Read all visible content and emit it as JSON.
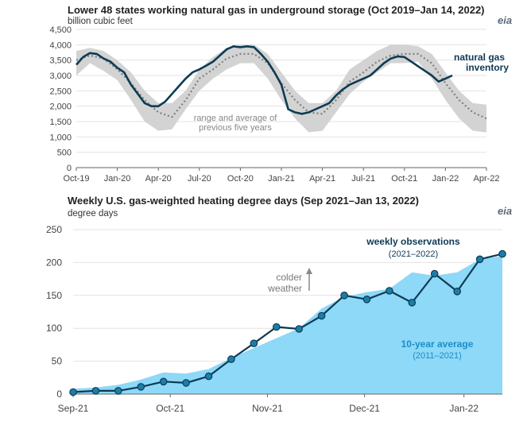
{
  "logo": {
    "text": "eia"
  },
  "chart_data": [
    {
      "type": "line",
      "title": "Lower 48 states working natural gas in underground storage (Oct 2019–Jan 14, 2022)",
      "unit_label": "billion cubic feet",
      "xlabel": "",
      "ylabel": "",
      "ylim": [
        0,
        4500
      ],
      "xlim_months": [
        0,
        30
      ],
      "grid": "horizontal",
      "y_ticks": [
        "0",
        "500",
        "1,000",
        "1,500",
        "2,000",
        "2,500",
        "3,000",
        "3,500",
        "4,000",
        "4,500"
      ],
      "x_ticks": [
        {
          "label": "Oct-19",
          "m": 0
        },
        {
          "label": "Jan-20",
          "m": 3
        },
        {
          "label": "Apr-20",
          "m": 6
        },
        {
          "label": "Jul-20",
          "m": 9
        },
        {
          "label": "Oct-20",
          "m": 12
        },
        {
          "label": "Jan-21",
          "m": 15
        },
        {
          "label": "Apr-21",
          "m": 18
        },
        {
          "label": "Jul-21",
          "m": 21
        },
        {
          "label": "Oct-21",
          "m": 24
        },
        {
          "label": "Jan-22",
          "m": 27
        },
        {
          "label": "Apr-22",
          "m": 30
        }
      ],
      "annotations": {
        "series_label": [
          "natural gas",
          "inventory"
        ],
        "band_label": [
          "range and average of",
          "previous five years"
        ]
      },
      "colors": {
        "inventory": "#0d3b55",
        "band": "#d3d3d3",
        "average": "#808080"
      },
      "series": [
        {
          "name": "natural gas inventory",
          "x_month": [
            0,
            0.5,
            1,
            1.5,
            2,
            2.5,
            3,
            3.5,
            4,
            4.5,
            5,
            5.5,
            6,
            6.5,
            7,
            7.5,
            8,
            8.5,
            9,
            9.5,
            10,
            10.5,
            11,
            11.5,
            12,
            12.5,
            13,
            13.5,
            14,
            14.5,
            15,
            15.5,
            16,
            16.5,
            17,
            17.5,
            18,
            18.5,
            19,
            19.5,
            20,
            20.5,
            21,
            21.5,
            22,
            22.5,
            23,
            23.5,
            24,
            24.5,
            25,
            25.5,
            26,
            26.5,
            27,
            27.5
          ],
          "y": [
            3350,
            3600,
            3730,
            3700,
            3550,
            3450,
            3250,
            3100,
            2700,
            2400,
            2100,
            2000,
            2000,
            2150,
            2400,
            2650,
            2900,
            3100,
            3200,
            3320,
            3450,
            3650,
            3850,
            3950,
            3920,
            3950,
            3920,
            3700,
            3450,
            3100,
            2700,
            1900,
            1800,
            1750,
            1800,
            1900,
            2000,
            2100,
            2350,
            2550,
            2700,
            2800,
            2900,
            3000,
            3200,
            3400,
            3550,
            3620,
            3600,
            3450,
            3300,
            3150,
            3000,
            2800,
            2900,
            3000
          ]
        },
        {
          "name": "five-year average",
          "x_month": [
            0,
            1,
            2,
            3,
            4,
            5,
            6,
            7,
            8,
            9,
            10,
            11,
            12,
            13,
            14,
            15,
            16,
            17,
            18,
            19,
            20,
            21,
            22,
            23,
            24,
            25,
            26,
            27,
            28,
            29,
            30
          ],
          "y": [
            3500,
            3650,
            3550,
            3200,
            2750,
            2200,
            1800,
            1650,
            2200,
            2900,
            3200,
            3550,
            3700,
            3700,
            3400,
            2750,
            2200,
            1800,
            1750,
            2200,
            2800,
            3100,
            3450,
            3650,
            3700,
            3700,
            3400,
            2750,
            2200,
            1800,
            1600
          ]
        },
        {
          "name": "five-year maximum",
          "x_month": [
            0,
            1,
            2,
            3,
            4,
            5,
            6,
            7,
            8,
            9,
            10,
            11,
            12,
            13,
            14,
            15,
            16,
            17,
            18,
            19,
            20,
            21,
            22,
            23,
            24,
            25,
            26,
            27,
            28,
            29,
            30
          ],
          "y": [
            3800,
            3900,
            3800,
            3500,
            3100,
            2500,
            2100,
            2100,
            2500,
            3200,
            3600,
            3900,
            4000,
            4000,
            3700,
            3100,
            2500,
            2100,
            2100,
            2500,
            3200,
            3500,
            3800,
            4000,
            4000,
            3950,
            3700,
            3100,
            2500,
            2100,
            2050
          ]
        },
        {
          "name": "five-year minimum",
          "x_month": [
            0,
            1,
            2,
            3,
            4,
            5,
            6,
            7,
            8,
            9,
            10,
            11,
            12,
            13,
            14,
            15,
            16,
            17,
            18,
            19,
            20,
            21,
            22,
            23,
            24,
            25,
            26,
            27,
            28,
            29,
            30
          ],
          "y": [
            3000,
            3400,
            3150,
            2850,
            2200,
            1500,
            1200,
            1250,
            1900,
            2500,
            2900,
            3200,
            3400,
            3400,
            2900,
            2200,
            1600,
            1150,
            1200,
            1800,
            2400,
            2800,
            3100,
            3400,
            3400,
            3450,
            2900,
            2200,
            1600,
            1200,
            1150
          ]
        }
      ]
    },
    {
      "type": "line",
      "title": "Weekly U.S. gas-weighted heating degree days (Sep 2021–Jan 13, 2022)",
      "unit_label": "degree days",
      "xlabel": "",
      "ylabel": "",
      "ylim": [
        0,
        250
      ],
      "xlim_weeks": [
        0,
        19
      ],
      "grid": "horizontal",
      "y_ticks": [
        "0",
        "50",
        "100",
        "150",
        "200",
        "250"
      ],
      "x_ticks": [
        {
          "label": "Sep-21",
          "w": 0
        },
        {
          "label": "Oct-21",
          "w": 4.3
        },
        {
          "label": "Nov-21",
          "w": 8.6
        },
        {
          "label": "Dec-21",
          "w": 12.9
        },
        {
          "label": "Jan-22",
          "w": 17.3
        }
      ],
      "annotations": {
        "obs_label": "weekly observations",
        "obs_years": "(2021–2022)",
        "avg_label": "10-year average",
        "avg_years": "(2011–2021)",
        "colder": [
          "colder",
          "weather"
        ]
      },
      "colors": {
        "observations": "#0d3b55",
        "marker": "#1a7fa8",
        "average_area": "#8ed8f8",
        "arrow": "#888888"
      },
      "series": [
        {
          "name": "weekly observations",
          "x_week": [
            0,
            1,
            2,
            3,
            4,
            5,
            6,
            7,
            8,
            9,
            10,
            11,
            12,
            13,
            14,
            15,
            16,
            17,
            18,
            19
          ],
          "y": [
            3,
            5,
            5,
            11,
            19,
            17,
            27,
            53,
            77,
            102,
            99,
            119,
            150,
            144,
            157,
            139,
            183,
            156,
            205,
            213
          ]
        },
        {
          "name": "10-year average",
          "x_week": [
            0,
            1,
            2,
            3,
            4,
            5,
            6,
            7,
            8,
            9,
            10,
            11,
            12,
            13,
            14,
            15,
            16,
            17,
            18,
            19
          ],
          "y": [
            8,
            10,
            14,
            22,
            33,
            31,
            38,
            55,
            70,
            85,
            100,
            130,
            148,
            155,
            160,
            185,
            180,
            185,
            205,
            210
          ]
        }
      ]
    }
  ]
}
